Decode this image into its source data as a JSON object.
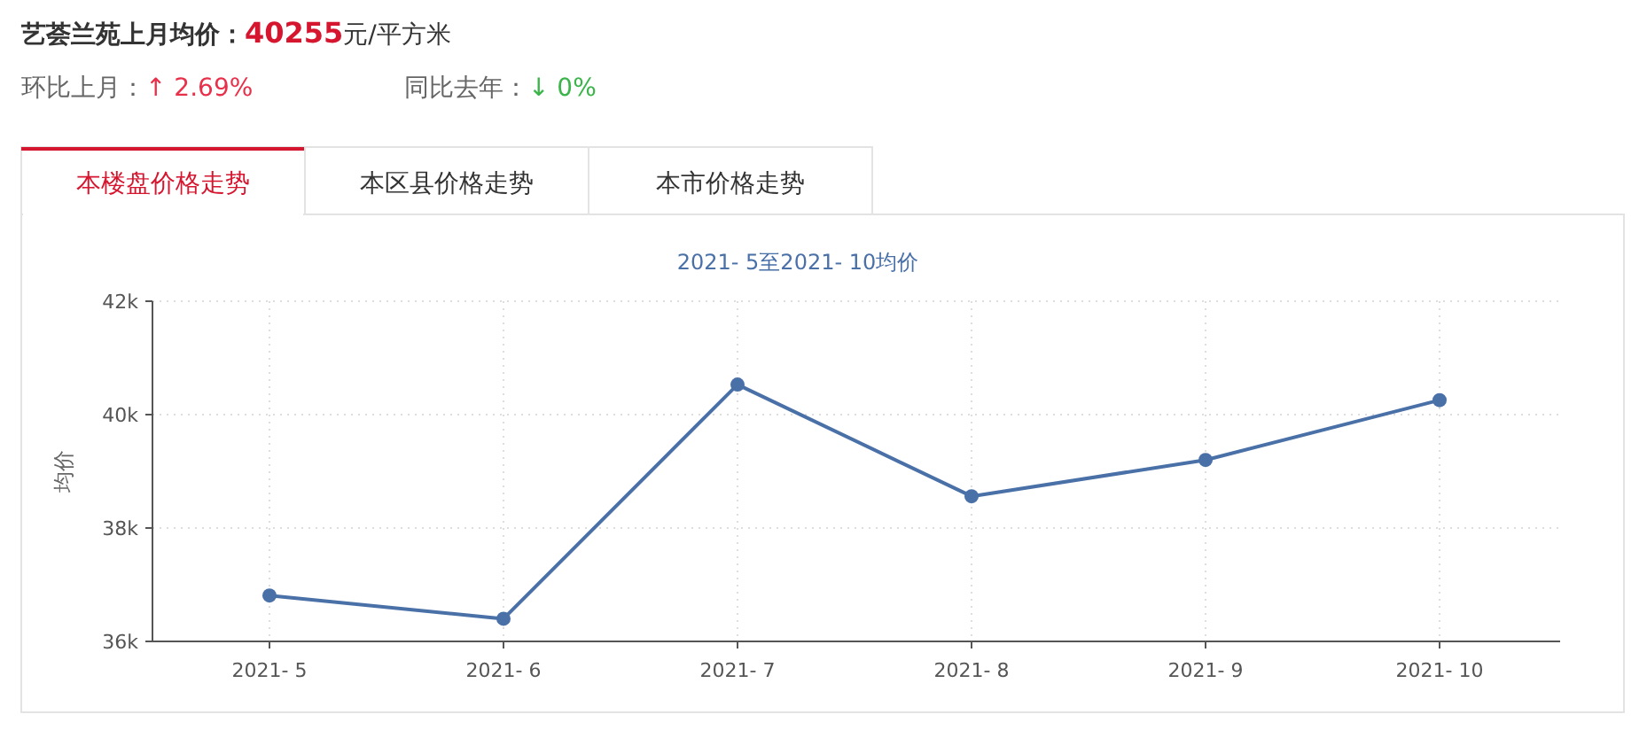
{
  "chart_data": {
    "type": "line",
    "title": "2021- 5至2021- 10均价",
    "ylabel": "均价",
    "categories": [
      "2021- 5",
      "2021- 6",
      "2021- 7",
      "2021- 8",
      "2021- 9",
      "2021- 10"
    ],
    "series": [
      {
        "color": "#4a70a8",
        "values": [
          36810,
          36400,
          40530,
          38560,
          39200,
          40255
        ]
      }
    ],
    "ylim": [
      36000,
      42000
    ],
    "yticks": [
      {
        "value": 36000,
        "label": "36k"
      },
      {
        "value": 38000,
        "label": "38k"
      },
      {
        "value": 40000,
        "label": "40k"
      },
      {
        "value": 42000,
        "label": "42k"
      }
    ],
    "grid": true,
    "marker": "circle",
    "annotations": [
      "艺荟兰苑上月均价：",
      "40255",
      "元/平方米",
      "环比上月：",
      "↑ 2.69%",
      "同比去年：",
      "↓ 0%",
      "本楼盘价格走势",
      "本区县价格走势",
      "本市价格走势"
    ]
  }
}
